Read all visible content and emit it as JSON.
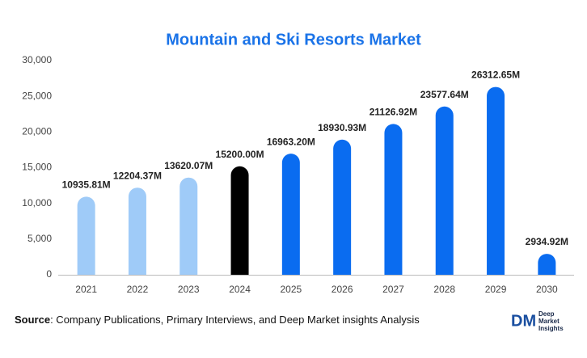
{
  "chart_data": {
    "type": "bar",
    "title": "Mountain and Ski Resorts Market",
    "categories": [
      "2021",
      "2022",
      "2023",
      "2024",
      "2025",
      "2026",
      "2027",
      "2028",
      "2029",
      "2030"
    ],
    "values": [
      10935.81,
      12204.37,
      13620.07,
      15200.0,
      16963.2,
      18930.93,
      21126.92,
      23577.64,
      26312.65,
      2934.92
    ],
    "value_labels": [
      "10935.81M",
      "12204.37M",
      "13620.07M",
      "15200.00M",
      "16963.20M",
      "18930.93M",
      "21126.92M",
      "23577.64M",
      "26312.65M",
      "2934.92M"
    ],
    "colors": [
      "#9fcbf8",
      "#9fcbf8",
      "#9fcbf8",
      "#000000",
      "#0a6cf0",
      "#0a6cf0",
      "#0a6cf0",
      "#0a6cf0",
      "#0a6cf0",
      "#0a6cf0"
    ],
    "ylim": [
      0,
      30000
    ],
    "yticks": [
      0,
      {
        "value": 5000,
        "label": "5,000"
      },
      {
        "value": 10000,
        "label": "10,000"
      },
      {
        "value": 15000,
        "label": "15,000"
      },
      {
        "value": 20000,
        "label": "20,000"
      },
      {
        "value": 25000,
        "label": "25,000"
      },
      {
        "value": 30000,
        "label": "30,000"
      }
    ],
    "grid": false
  },
  "footer": {
    "source_label": "Source",
    "source_text": ": Company Publications, Primary Interviews, and Deep Market insights Analysis",
    "logo_mark": "DM",
    "logo_lines": [
      "Deep",
      "Market",
      "Insights"
    ]
  }
}
